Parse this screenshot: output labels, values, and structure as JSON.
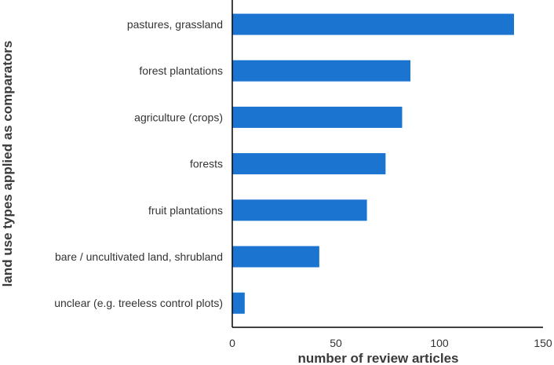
{
  "chart_data": {
    "type": "bar",
    "orientation": "horizontal",
    "categories": [
      "pastures, grassland",
      "forest plantations",
      "agriculture (crops)",
      "forests",
      "fruit plantations",
      "bare / uncultivated land, shrubland",
      "unclear (e.g. treeless control plots)"
    ],
    "values": [
      136,
      86,
      82,
      74,
      65,
      42,
      6
    ],
    "xlabel": "number of review articles",
    "ylabel": "land use types applied as comparators",
    "xlim": [
      0,
      150
    ],
    "xticks": [
      0,
      50,
      100,
      150
    ],
    "bar_color": "#1b75d0",
    "grid": false,
    "legend": "none"
  }
}
